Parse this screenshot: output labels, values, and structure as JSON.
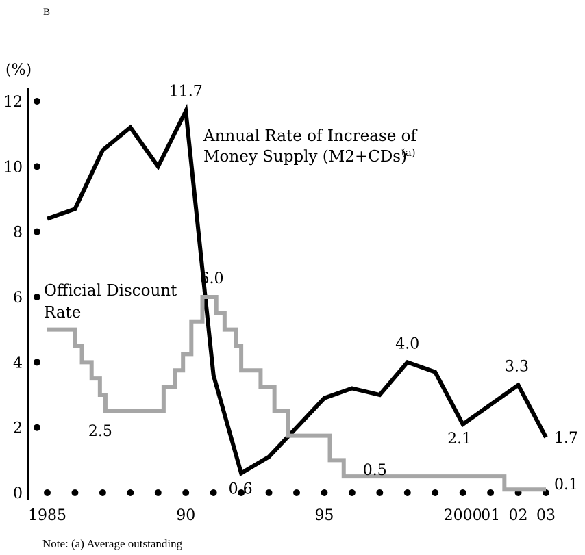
{
  "header": {
    "letter": "B"
  },
  "note": "Note: (a) Average outstanding",
  "chart_data": {
    "type": "line",
    "title": "",
    "ylabel": "(%)",
    "ylim": [
      0,
      12
    ],
    "xlim": [
      1985,
      2003
    ],
    "yticks": [
      {
        "value": 0,
        "label": "0"
      },
      {
        "value": 2,
        "label": "2"
      },
      {
        "value": 4,
        "label": "4"
      },
      {
        "value": 6,
        "label": "6"
      },
      {
        "value": 8,
        "label": "8"
      },
      {
        "value": 10,
        "label": "10"
      },
      {
        "value": 12,
        "label": "12"
      }
    ],
    "xticks": [
      {
        "value": 1985,
        "label": "1985"
      },
      {
        "value": 1990,
        "label": "90"
      },
      {
        "value": 1995,
        "label": "95"
      },
      {
        "value": 2000,
        "label": "2000"
      },
      {
        "value": 2001,
        "label": "01"
      },
      {
        "value": 2002,
        "label": "02"
      },
      {
        "value": 2003,
        "label": "03"
      }
    ],
    "series": [
      {
        "name": "Annual Rate of Increase of Money Supply (M2+CDs)",
        "name_lines": [
          "Annual Rate of Increase of",
          "Money Supply (M2+CDs)"
        ],
        "name_sup": "(a)",
        "color": "#000000",
        "step": false,
        "points": [
          [
            1985,
            8.4
          ],
          [
            1986,
            8.7
          ],
          [
            1987,
            10.5
          ],
          [
            1988,
            11.2
          ],
          [
            1989,
            10.0
          ],
          [
            1990,
            11.7
          ],
          [
            1991,
            3.6
          ],
          [
            1992,
            0.6
          ],
          [
            1993,
            1.1
          ],
          [
            1994,
            2.0
          ],
          [
            1995,
            2.9
          ],
          [
            1996,
            3.2
          ],
          [
            1997,
            3.0
          ],
          [
            1998,
            4.0
          ],
          [
            1999,
            3.7
          ],
          [
            2000,
            2.1
          ],
          [
            2001,
            2.7
          ],
          [
            2002,
            3.3
          ],
          [
            2003,
            1.7
          ]
        ],
        "labels": [
          {
            "x": 1990,
            "y": 11.7,
            "text": "11.7"
          },
          {
            "x": 1992,
            "y": 0.6,
            "text": "0.6"
          },
          {
            "x": 1998,
            "y": 4.0,
            "text": "4.0"
          },
          {
            "x": 2000,
            "y": 2.1,
            "text": "2.1"
          },
          {
            "x": 2002,
            "y": 3.3,
            "text": "3.3"
          },
          {
            "x": 2003,
            "y": 1.7,
            "text": "1.7"
          }
        ]
      },
      {
        "name": "Official Discount Rate",
        "name_lines": [
          "Official Discount",
          "Rate"
        ],
        "name_sup": "",
        "color": "#a6a6a6",
        "step": true,
        "points": [
          [
            1985,
            5.0
          ],
          [
            1986.0,
            4.5
          ],
          [
            1986.25,
            4.0
          ],
          [
            1986.6,
            3.5
          ],
          [
            1986.9,
            3.0
          ],
          [
            1987.1,
            2.5
          ],
          [
            1989.2,
            3.25
          ],
          [
            1989.6,
            3.75
          ],
          [
            1989.9,
            4.25
          ],
          [
            1990.2,
            5.25
          ],
          [
            1990.6,
            6.0
          ],
          [
            1991.1,
            5.5
          ],
          [
            1991.4,
            5.0
          ],
          [
            1991.8,
            4.5
          ],
          [
            1992.0,
            3.75
          ],
          [
            1992.7,
            3.25
          ],
          [
            1993.2,
            2.5
          ],
          [
            1993.7,
            1.75
          ],
          [
            1995.2,
            1.0
          ],
          [
            1995.7,
            0.5
          ],
          [
            2001.1,
            0.5
          ],
          [
            2001.5,
            0.1
          ],
          [
            2003,
            0.1
          ]
        ],
        "labels": [
          {
            "x": 1990.6,
            "y": 6.0,
            "text": "6.0"
          },
          {
            "x": 1987.1,
            "y": 2.5,
            "text": "2.5"
          },
          {
            "x": 1995.7,
            "y": 0.5,
            "text": "0.5"
          },
          {
            "x": 2003,
            "y": 0.1,
            "text": "0.1"
          }
        ]
      }
    ]
  }
}
